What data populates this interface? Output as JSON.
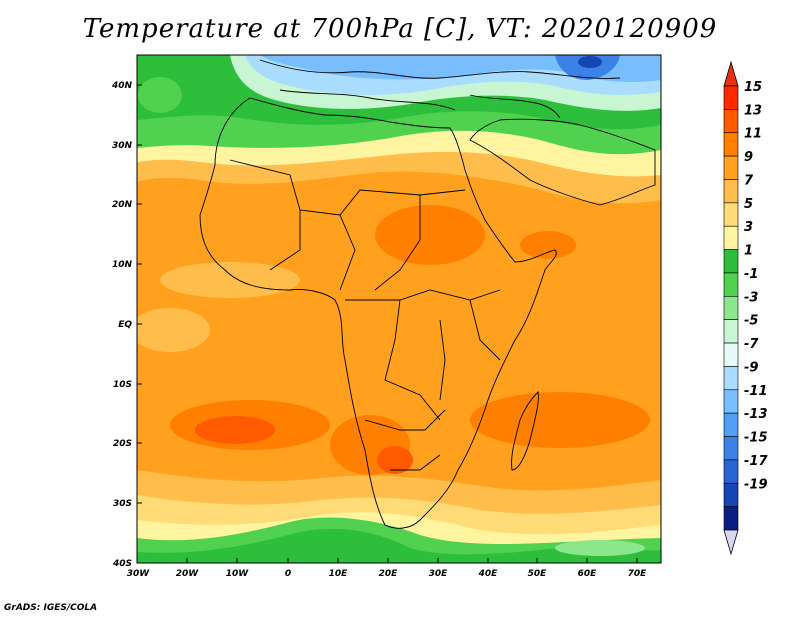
{
  "title": "Temperature at 700hPa [C], VT: 2020120909",
  "credit": "GrADS: IGES/COLA",
  "lat_labels": [
    "40N",
    "30N",
    "20N",
    "10N",
    "EQ",
    "10S",
    "20S",
    "30S",
    "40S"
  ],
  "lon_labels": [
    "30W",
    "20W",
    "10W",
    "0",
    "10E",
    "20E",
    "30E",
    "40E",
    "50E",
    "60E",
    "70E"
  ],
  "map_extent": {
    "lon_min": -30,
    "lon_max": 75,
    "lat_min": -40,
    "lat_max": 45
  },
  "colorbar": {
    "labels": [
      "15",
      "13",
      "11",
      "9",
      "7",
      "5",
      "3",
      "1",
      "-1",
      "-3",
      "-5",
      "-7",
      "-9",
      "-11",
      "-13",
      "-15",
      "-17",
      "-19"
    ],
    "colors": [
      "#ff2a00",
      "#ff5a00",
      "#ff7f00",
      "#ffa01e",
      "#ffbe4b",
      "#ffdc78",
      "#fff5a0",
      "#2dbe3c",
      "#50d250",
      "#8ce68c",
      "#c8f5d2",
      "#e6fafa",
      "#aadcff",
      "#78beff",
      "#50a0f5",
      "#3c82e6",
      "#2864d2",
      "#1446b4",
      "#0a1e82"
    ],
    "top_color": "#e8300a",
    "bottom_color": "#d8d8f4"
  }
}
